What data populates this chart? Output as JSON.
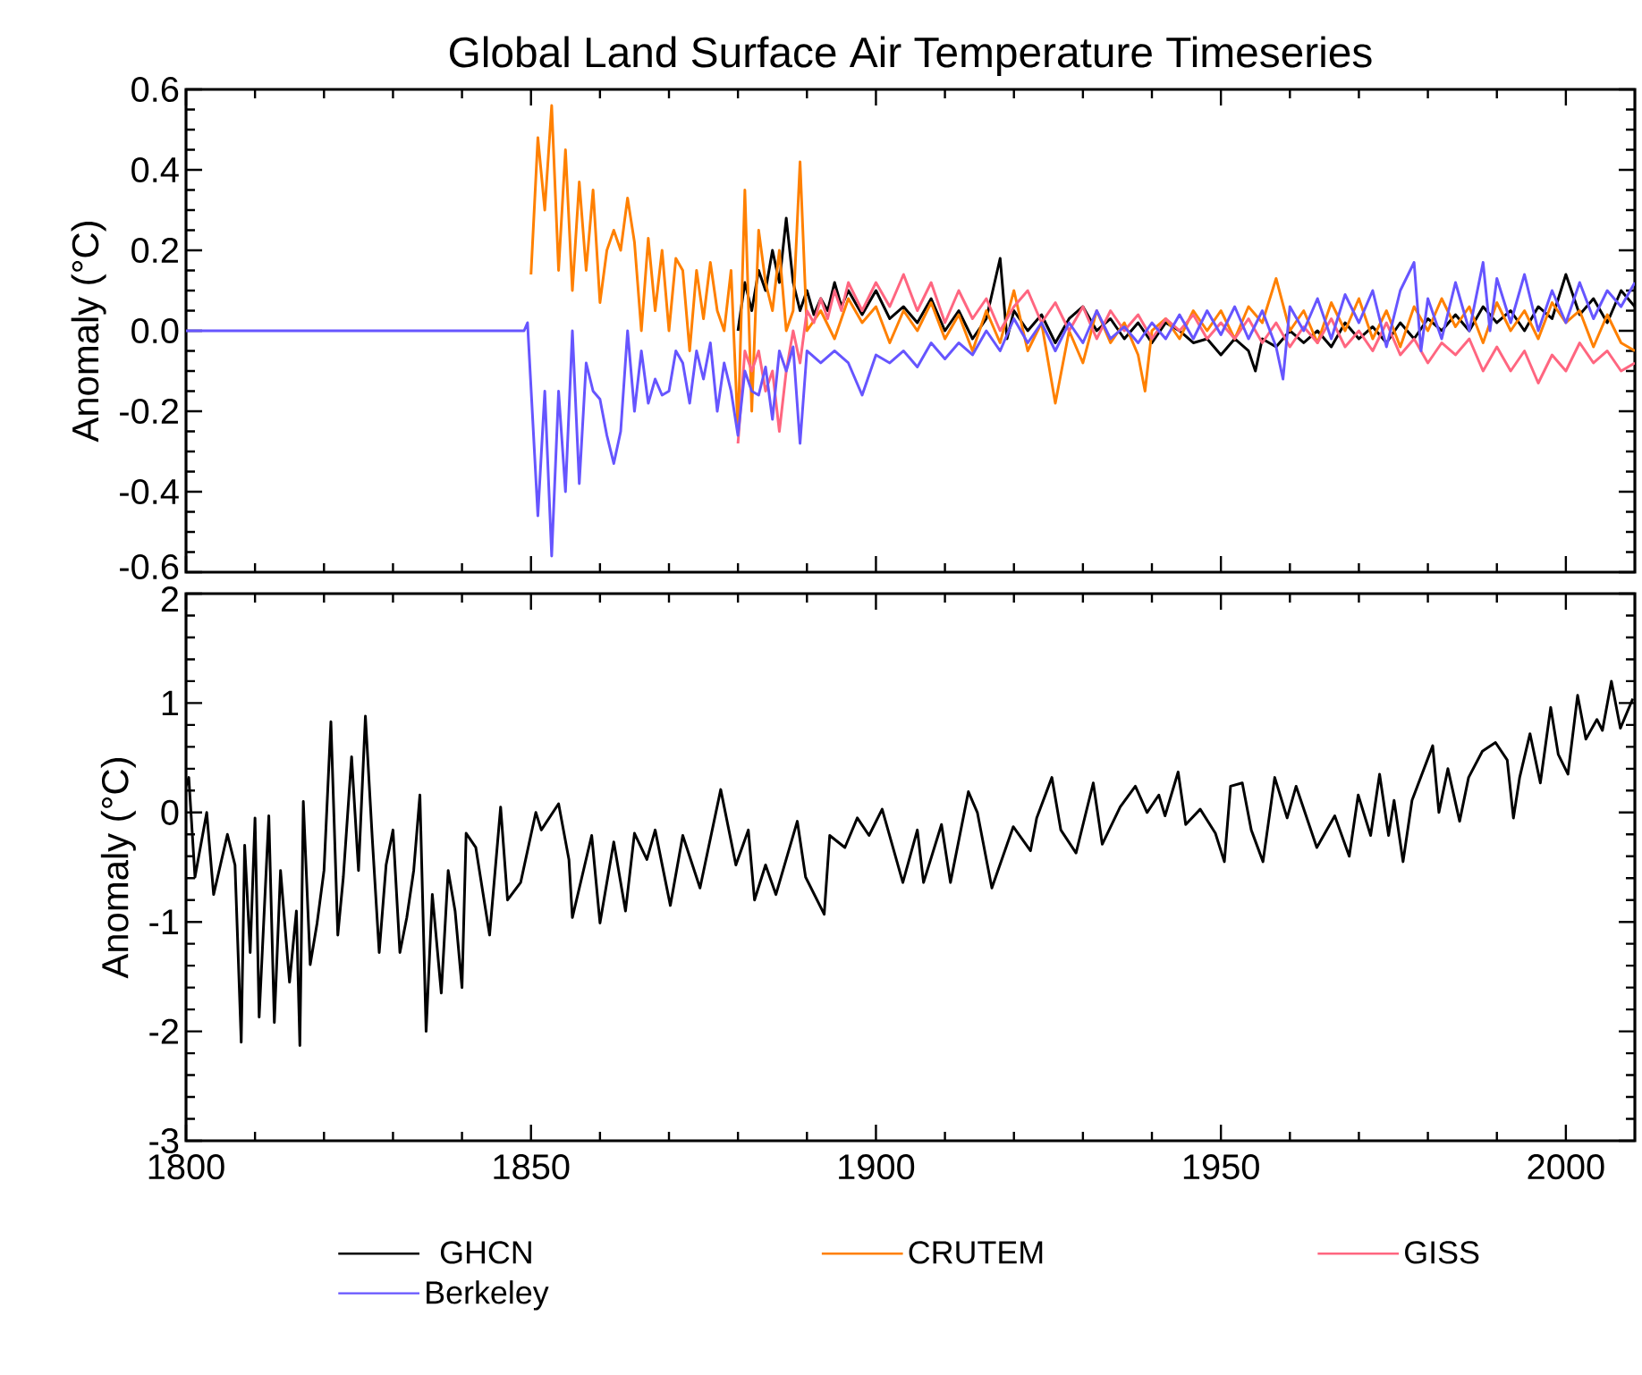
{
  "chart_data": [
    {
      "type": "line",
      "title": "Global Land Surface Air Temperature Timeseries",
      "ylabel": "Anomaly (°C)",
      "xlim": [
        1800,
        2010
      ],
      "xticks": [
        1800,
        1850,
        1900,
        1950,
        2000
      ],
      "ylim": [
        -0.6,
        0.6
      ],
      "yticks": [
        -0.6,
        -0.4,
        -0.2,
        {
          "value": 0,
          "label": "0.0"
        },
        0.2,
        0.4,
        0.6
      ],
      "tick_labels": "y",
      "legend": "bottom",
      "series": [
        {
          "name": "GHCN",
          "color": "#000000",
          "x": [
            1880,
            1881,
            1882,
            1883,
            1884,
            1885,
            1886,
            1887,
            1888,
            1889,
            1890,
            1891,
            1892,
            1893,
            1894,
            1895,
            1896,
            1898,
            1900,
            1902,
            1904,
            1906,
            1908,
            1910,
            1912,
            1914,
            1916,
            1918,
            1919,
            1920,
            1922,
            1924,
            1926,
            1928,
            1930,
            1932,
            1934,
            1936,
            1938,
            1940,
            1942,
            1944,
            1946,
            1948,
            1950,
            1952,
            1954,
            1955,
            1956,
            1958,
            1960,
            1962,
            1964,
            1966,
            1968,
            1970,
            1972,
            1974,
            1976,
            1978,
            1980,
            1982,
            1984,
            1986,
            1988,
            1990,
            1992,
            1994,
            1996,
            1998,
            2000,
            2002,
            2004,
            2006,
            2008,
            2010
          ],
          "values": [
            0.0,
            0.12,
            0.05,
            0.15,
            0.1,
            0.2,
            0.12,
            0.28,
            0.12,
            0.05,
            0.1,
            0.04,
            0.08,
            0.05,
            0.12,
            0.06,
            0.1,
            0.04,
            0.1,
            0.03,
            0.06,
            0.02,
            0.08,
            0.0,
            0.05,
            -0.02,
            0.03,
            0.18,
            -0.02,
            0.05,
            0.0,
            0.04,
            -0.03,
            0.03,
            0.06,
            0.0,
            0.03,
            -0.02,
            0.02,
            -0.03,
            0.02,
            0.0,
            -0.03,
            -0.02,
            -0.06,
            -0.02,
            -0.05,
            -0.1,
            -0.02,
            -0.04,
            0.0,
            -0.03,
            0.0,
            -0.04,
            0.02,
            -0.02,
            0.01,
            -0.03,
            0.02,
            -0.02,
            0.03,
            0.0,
            0.04,
            0.0,
            0.06,
            0.02,
            0.05,
            0.0,
            0.06,
            0.03,
            0.14,
            0.04,
            0.08,
            0.02,
            0.1,
            0.06
          ]
        },
        {
          "name": "CRUTEM",
          "color": "#ff8000",
          "x": [
            1850,
            1851,
            1852,
            1853,
            1854,
            1855,
            1856,
            1857,
            1858,
            1859,
            1860,
            1861,
            1862,
            1863,
            1864,
            1865,
            1866,
            1867,
            1868,
            1869,
            1870,
            1871,
            1872,
            1873,
            1874,
            1875,
            1876,
            1877,
            1878,
            1879,
            1880,
            1881,
            1882,
            1883,
            1884,
            1885,
            1886,
            1887,
            1888,
            1889,
            1890,
            1892,
            1894,
            1896,
            1898,
            1900,
            1902,
            1904,
            1906,
            1908,
            1910,
            1912,
            1914,
            1916,
            1918,
            1920,
            1922,
            1924,
            1926,
            1928,
            1930,
            1932,
            1934,
            1936,
            1938,
            1939,
            1940,
            1942,
            1944,
            1946,
            1948,
            1950,
            1952,
            1954,
            1956,
            1958,
            1960,
            1962,
            1964,
            1966,
            1968,
            1970,
            1972,
            1974,
            1976,
            1978,
            1980,
            1982,
            1984,
            1986,
            1988,
            1990,
            1992,
            1994,
            1996,
            1998,
            2000,
            2002,
            2004,
            2006,
            2008,
            2010
          ],
          "values": [
            0.14,
            0.48,
            0.3,
            0.56,
            0.15,
            0.45,
            0.1,
            0.37,
            0.15,
            0.35,
            0.07,
            0.2,
            0.25,
            0.2,
            0.33,
            0.22,
            0.0,
            0.23,
            0.05,
            0.2,
            0.0,
            0.18,
            0.15,
            -0.05,
            0.15,
            0.03,
            0.17,
            0.05,
            0.0,
            0.15,
            -0.25,
            0.35,
            -0.2,
            0.25,
            0.12,
            0.05,
            0.2,
            0.0,
            0.05,
            0.42,
            0.0,
            0.05,
            -0.02,
            0.08,
            0.02,
            0.06,
            -0.03,
            0.05,
            0.0,
            0.07,
            -0.02,
            0.04,
            -0.05,
            0.05,
            -0.03,
            0.1,
            -0.05,
            0.02,
            -0.18,
            0.0,
            -0.08,
            0.05,
            -0.03,
            0.02,
            -0.06,
            -0.15,
            0.0,
            0.03,
            -0.02,
            0.05,
            0.0,
            0.05,
            -0.02,
            0.06,
            0.02,
            0.13,
            0.0,
            0.05,
            -0.03,
            0.07,
            0.0,
            0.08,
            -0.02,
            0.05,
            -0.04,
            0.06,
            0.0,
            0.08,
            0.01,
            0.06,
            -0.03,
            0.07,
            0.0,
            0.05,
            -0.02,
            0.07,
            0.02,
            0.05,
            -0.04,
            0.04,
            -0.03,
            -0.05
          ]
        },
        {
          "name": "GISS",
          "color": "#ff6680",
          "x": [
            1880,
            1881,
            1882,
            1883,
            1884,
            1885,
            1886,
            1887,
            1888,
            1889,
            1890,
            1891,
            1892,
            1893,
            1894,
            1895,
            1896,
            1898,
            1900,
            1902,
            1904,
            1906,
            1908,
            1910,
            1912,
            1914,
            1916,
            1918,
            1920,
            1922,
            1924,
            1926,
            1928,
            1930,
            1932,
            1934,
            1936,
            1938,
            1940,
            1942,
            1944,
            1946,
            1948,
            1950,
            1952,
            1954,
            1956,
            1958,
            1960,
            1962,
            1964,
            1966,
            1968,
            1970,
            1972,
            1974,
            1976,
            1978,
            1980,
            1982,
            1984,
            1986,
            1988,
            1990,
            1992,
            1994,
            1996,
            1998,
            2000,
            2002,
            2004,
            2006,
            2008,
            2010
          ],
          "values": [
            -0.28,
            -0.05,
            -0.1,
            -0.05,
            -0.15,
            -0.1,
            -0.25,
            -0.1,
            0.0,
            -0.08,
            0.05,
            0.02,
            0.08,
            0.03,
            0.1,
            0.05,
            0.12,
            0.05,
            0.12,
            0.06,
            0.14,
            0.05,
            0.12,
            0.02,
            0.1,
            0.03,
            0.08,
            0.0,
            0.06,
            0.1,
            0.02,
            0.07,
            0.0,
            0.06,
            -0.02,
            0.05,
            0.0,
            0.04,
            -0.02,
            0.03,
            0.0,
            0.04,
            -0.02,
            0.02,
            -0.02,
            0.03,
            -0.03,
            0.02,
            -0.04,
            0.01,
            -0.03,
            0.03,
            -0.04,
            0.0,
            -0.05,
            0.02,
            -0.06,
            -0.02,
            -0.08,
            -0.03,
            -0.06,
            -0.02,
            -0.1,
            -0.04,
            -0.1,
            -0.05,
            -0.13,
            -0.06,
            -0.1,
            -0.03,
            -0.08,
            -0.05,
            -0.1,
            -0.08
          ]
        },
        {
          "name": "Berkeley",
          "color": "#6655ff",
          "x": [
            1800,
            1849,
            1849.5,
            1851,
            1852,
            1853,
            1854,
            1855,
            1856,
            1857,
            1858,
            1859,
            1860,
            1861,
            1862,
            1863,
            1864,
            1865,
            1866,
            1867,
            1868,
            1869,
            1870,
            1871,
            1872,
            1873,
            1874,
            1875,
            1876,
            1877,
            1878,
            1879,
            1880,
            1881,
            1882,
            1883,
            1884,
            1885,
            1886,
            1887,
            1888,
            1889,
            1890,
            1892,
            1894,
            1896,
            1898,
            1900,
            1902,
            1904,
            1906,
            1908,
            1910,
            1912,
            1914,
            1916,
            1918,
            1920,
            1922,
            1924,
            1926,
            1928,
            1930,
            1932,
            1934,
            1936,
            1938,
            1940,
            1942,
            1944,
            1946,
            1948,
            1950,
            1952,
            1954,
            1956,
            1958,
            1959,
            1960,
            1962,
            1964,
            1966,
            1968,
            1970,
            1972,
            1974,
            1976,
            1978,
            1979,
            1980,
            1982,
            1984,
            1986,
            1988,
            1989,
            1990,
            1992,
            1994,
            1996,
            1998,
            2000,
            2002,
            2004,
            2006,
            2008,
            2010
          ],
          "values": [
            0,
            0,
            0.02,
            -0.46,
            -0.15,
            -0.56,
            -0.15,
            -0.4,
            0.0,
            -0.38,
            -0.08,
            -0.15,
            -0.17,
            -0.26,
            -0.33,
            -0.25,
            0.0,
            -0.2,
            -0.05,
            -0.18,
            -0.12,
            -0.16,
            -0.15,
            -0.05,
            -0.08,
            -0.18,
            -0.05,
            -0.12,
            -0.03,
            -0.2,
            -0.08,
            -0.15,
            -0.26,
            -0.1,
            -0.15,
            -0.16,
            -0.09,
            -0.22,
            -0.05,
            -0.1,
            -0.04,
            -0.28,
            -0.05,
            -0.08,
            -0.05,
            -0.08,
            -0.16,
            -0.06,
            -0.08,
            -0.05,
            -0.09,
            -0.03,
            -0.07,
            -0.03,
            -0.06,
            0.0,
            -0.05,
            0.03,
            -0.03,
            0.02,
            -0.05,
            0.02,
            -0.03,
            0.05,
            -0.02,
            0.01,
            -0.03,
            0.02,
            -0.02,
            0.04,
            -0.02,
            0.05,
            -0.01,
            0.06,
            -0.02,
            0.05,
            -0.04,
            -0.12,
            0.06,
            0.0,
            0.08,
            -0.02,
            0.09,
            0.02,
            0.1,
            -0.04,
            0.1,
            0.17,
            -0.05,
            0.08,
            -0.02,
            0.12,
            0.0,
            0.17,
            0.0,
            0.13,
            0.02,
            0.14,
            0.0,
            0.1,
            0.02,
            0.12,
            0.03,
            0.1,
            0.06,
            0.12
          ]
        }
      ]
    },
    {
      "type": "line",
      "ylabel": "Anomaly (°C)",
      "xlim": [
        1800,
        2010
      ],
      "xticks": [
        1800,
        1850,
        1900,
        1950,
        2000
      ],
      "ylim": [
        -3,
        2
      ],
      "yticks": [
        -3,
        -2,
        -1,
        0,
        1,
        2
      ],
      "series": [
        {
          "color": "#000000",
          "x": [
            1800,
            1800.4,
            1801.3,
            1803,
            1804,
            1806,
            1807.1,
            1808,
            1808.5,
            1809.3,
            1810,
            1810.6,
            1812,
            1812.8,
            1813.7,
            1815,
            1816,
            1816.5,
            1817,
            1818,
            1819,
            1820,
            1821,
            1822,
            1822.8,
            1824,
            1825,
            1826,
            1827,
            1828,
            1829,
            1830,
            1831,
            1832,
            1833,
            1833.9,
            1834.8,
            1835.7,
            1837,
            1838,
            1839,
            1840,
            1840.6,
            1842,
            1844,
            1845.6,
            1846.6,
            1848.5,
            1850.7,
            1851.5,
            1854,
            1855.5,
            1856,
            1858.8,
            1860,
            1862,
            1863.7,
            1865,
            1866.8,
            1868,
            1870.2,
            1872,
            1874.5,
            1877.5,
            1879.7,
            1881.5,
            1882.4,
            1884,
            1885.5,
            1888.6,
            1889.8,
            1892.5,
            1893.3,
            1895.5,
            1897.3,
            1899,
            1900.9,
            1903.9,
            1906,
            1906.9,
            1909.5,
            1910.8,
            1913.4,
            1914.7,
            1916.8,
            1919.9,
            1922.4,
            1923.3,
            1925.5,
            1926.8,
            1929,
            1931.5,
            1932.8,
            1935.4,
            1937.6,
            1939.3,
            1941,
            1941.9,
            1943.8,
            1944.9,
            1947,
            1949.2,
            1950.5,
            1951.4,
            1953.1,
            1954.4,
            1956.1,
            1957.8,
            1959.6,
            1960.9,
            1963.9,
            1966.5,
            1968.6,
            1969.9,
            1971.7,
            1973,
            1974.3,
            1975.1,
            1976.4,
            1977.7,
            1980.7,
            1981.6,
            1982.9,
            1984.6,
            1985.9,
            1987.9,
            1989.8,
            1991.5,
            1992.4,
            1993.3,
            1994.8,
            1996.3,
            1997.8,
            1998.9,
            2000.3,
            2001.7,
            2002.9,
            2004.5,
            2005.3,
            2006.6,
            2007.9,
            2009.7
          ],
          "values": [
            0.24,
            0.32,
            -0.59,
            0,
            -0.75,
            -0.2,
            -0.48,
            -2.1,
            -0.3,
            -1.28,
            -0.05,
            -1.87,
            -0.03,
            -1.92,
            -0.53,
            -1.55,
            -0.9,
            -2.13,
            0.1,
            -1.39,
            -1.01,
            -0.53,
            0.83,
            -1.12,
            -0.59,
            0.51,
            -0.53,
            0.88,
            -0.24,
            -1.28,
            -0.48,
            -0.16,
            -1.28,
            -0.96,
            -0.53,
            0.16,
            -2.0,
            -0.75,
            -1.65,
            -0.53,
            -0.9,
            -1.6,
            -0.19,
            -0.32,
            -1.12,
            0.05,
            -0.8,
            -0.64,
            0,
            -0.16,
            0.08,
            -0.43,
            -0.96,
            -0.21,
            -1.01,
            -0.27,
            -0.9,
            -0.19,
            -0.43,
            -0.16,
            -0.85,
            -0.21,
            -0.69,
            0.21,
            -0.48,
            -0.16,
            -0.8,
            -0.48,
            -0.75,
            -0.08,
            -0.59,
            -0.93,
            -0.21,
            -0.32,
            -0.05,
            -0.21,
            0.03,
            -0.64,
            -0.16,
            -0.64,
            -0.11,
            -0.64,
            0.19,
            0,
            -0.69,
            -0.13,
            -0.35,
            -0.05,
            0.32,
            -0.16,
            -0.37,
            0.27,
            -0.29,
            0.05,
            0.24,
            0,
            0.16,
            -0.03,
            0.37,
            -0.11,
            0.03,
            -0.19,
            -0.45,
            0.24,
            0.27,
            -0.16,
            -0.45,
            0.32,
            -0.05,
            0.24,
            -0.32,
            -0.03,
            -0.4,
            0.16,
            -0.21,
            0.35,
            -0.21,
            0.11,
            -0.45,
            0.11,
            0.61,
            0,
            0.4,
            -0.08,
            0.32,
            0.56,
            0.64,
            0.48,
            -0.05,
            0.32,
            0.72,
            0.27,
            0.96,
            0.53,
            0.35,
            1.07,
            0.67,
            0.85,
            0.75,
            1.2,
            0.77,
            1.04
          ]
        }
      ]
    }
  ]
}
